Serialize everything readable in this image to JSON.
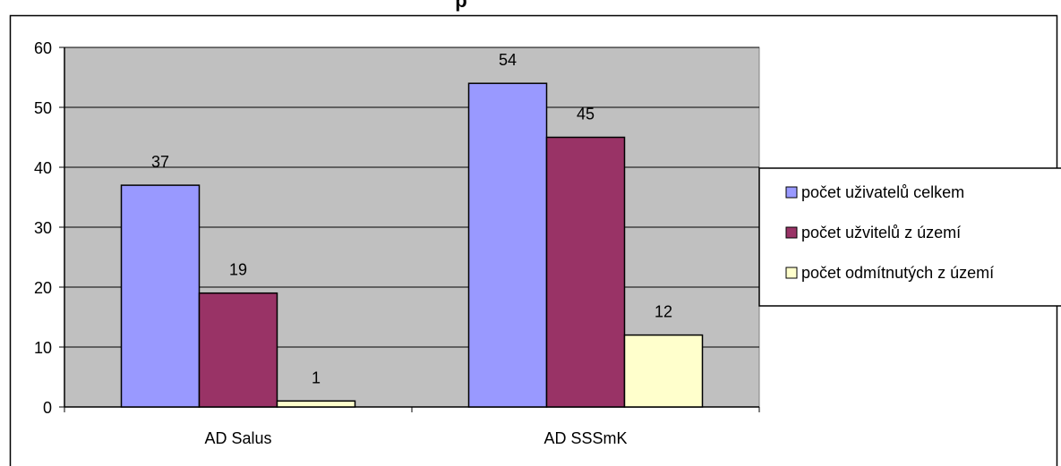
{
  "chart_data": {
    "type": "bar",
    "title": "p",
    "categories": [
      "AD Salus",
      "AD SSSmK"
    ],
    "series": [
      {
        "name": "počet uživatelů celkem",
        "values": [
          37,
          54
        ],
        "color": "#9999ff"
      },
      {
        "name": "počet užvitelů z území",
        "values": [
          19,
          45
        ],
        "color": "#993366"
      },
      {
        "name": "počet odmítnutých z území",
        "values": [
          1,
          12
        ],
        "color": "#ffffcc"
      }
    ],
    "ylim": [
      0,
      60
    ],
    "yticks": [
      0,
      10,
      20,
      30,
      40,
      50,
      60
    ],
    "grid": true,
    "legend_position": "right",
    "data_labels": true,
    "plot_background": "#c0c0c0"
  }
}
